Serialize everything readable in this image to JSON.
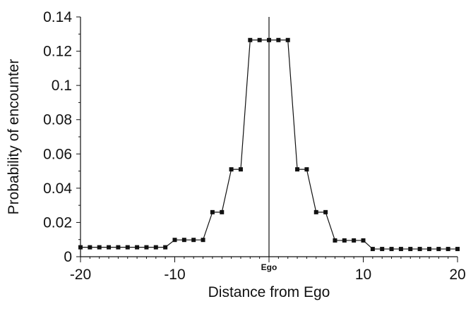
{
  "chart_data": {
    "type": "line",
    "title": "",
    "xlabel": "Distance from Ego",
    "ylabel": "Probability of encounter",
    "xlim": [
      -20,
      20
    ],
    "ylim": [
      0,
      0.14
    ],
    "x_ticks": [
      -20,
      -10,
      10,
      20
    ],
    "x_tick_labels": [
      "-20",
      "-10",
      "10",
      "20"
    ],
    "center_label": "Ego",
    "y_ticks": [
      0,
      0.02,
      0.04,
      0.06,
      0.08,
      0.1,
      0.12,
      0.14
    ],
    "y_tick_labels": [
      "0",
      "0.02",
      "0.04",
      "0.06",
      "0.08",
      "0.1",
      "0.12",
      "0.14"
    ],
    "grid": false,
    "legend": "none",
    "series": [
      {
        "color": "#111111",
        "marker": "square",
        "x": [
          -20,
          -19,
          -18,
          -17,
          -16,
          -15,
          -14,
          -13,
          -12,
          -11,
          -10,
          -9,
          -8,
          -7,
          -6,
          -5,
          -4,
          -3,
          -2,
          -1,
          0,
          1,
          2,
          3,
          4,
          5,
          6,
          7,
          8,
          9,
          10,
          11,
          12,
          13,
          14,
          15,
          16,
          17,
          18,
          19,
          20
        ],
        "y": [
          0.0055,
          0.0055,
          0.0055,
          0.0055,
          0.0055,
          0.0055,
          0.0055,
          0.0055,
          0.0055,
          0.0055,
          0.0098,
          0.0098,
          0.0098,
          0.0098,
          0.026,
          0.026,
          0.051,
          0.051,
          0.1265,
          0.1265,
          0.1265,
          0.1265,
          0.1265,
          0.051,
          0.051,
          0.026,
          0.026,
          0.0095,
          0.0095,
          0.0095,
          0.0095,
          0.0045,
          0.0045,
          0.0045,
          0.0045,
          0.0045,
          0.0045,
          0.0045,
          0.0045,
          0.0045,
          0.0045
        ]
      }
    ]
  }
}
